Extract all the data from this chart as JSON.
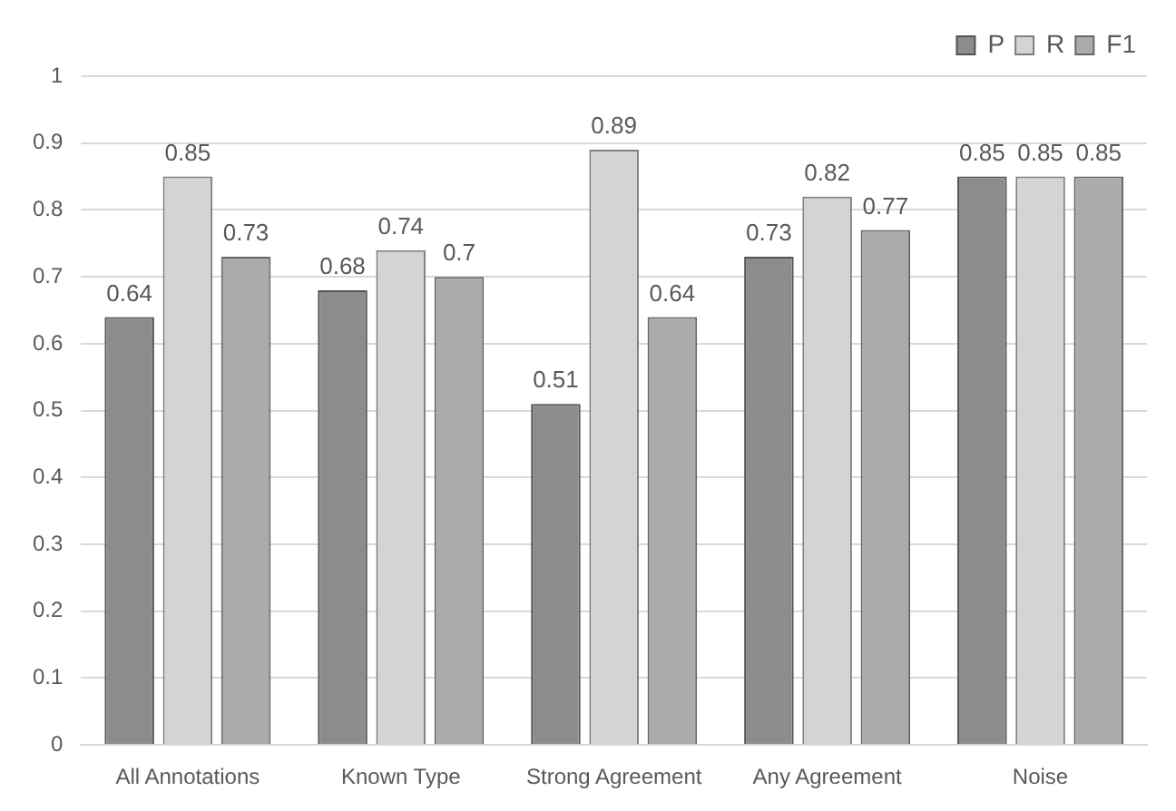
{
  "chart_data": {
    "type": "bar",
    "categories": [
      "All Annotations",
      "Known Type",
      "Strong Agreement",
      "Any Agreement",
      "Noise"
    ],
    "series": [
      {
        "name": "P",
        "color": "#8c8c8c",
        "values": [
          0.64,
          0.68,
          0.51,
          0.73,
          0.85
        ]
      },
      {
        "name": "R",
        "color": "#d4d4d4",
        "values": [
          0.85,
          0.74,
          0.89,
          0.82,
          0.85
        ]
      },
      {
        "name": "F1",
        "color": "#ababab",
        "values": [
          0.73,
          0.7,
          0.64,
          0.77,
          0.85
        ]
      }
    ],
    "ylim": [
      0,
      1
    ],
    "yticks": [
      0,
      0.1,
      0.2,
      0.3,
      0.4,
      0.5,
      0.6,
      0.7,
      0.8,
      0.9,
      1
    ],
    "grid": "y",
    "legend": "top right",
    "data_labels": true
  }
}
